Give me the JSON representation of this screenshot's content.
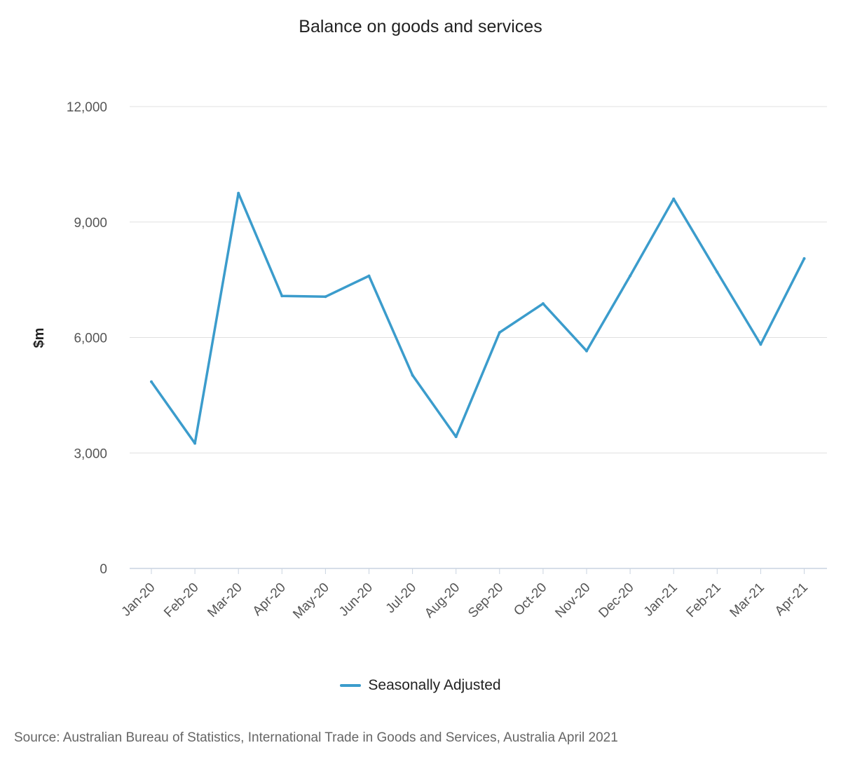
{
  "chart_data": {
    "type": "line",
    "title": "Balance on goods and services",
    "ylabel": "$m",
    "xlabel": "",
    "categories": [
      "Jan-20",
      "Feb-20",
      "Mar-20",
      "Apr-20",
      "May-20",
      "Jun-20",
      "Jul-20",
      "Aug-20",
      "Sep-20",
      "Oct-20",
      "Nov-20",
      "Dec-20",
      "Jan-21",
      "Feb-21",
      "Mar-21",
      "Apr-21"
    ],
    "series": [
      {
        "name": "Seasonally Adjusted",
        "color": "#3b9ccc",
        "values": [
          4850,
          3250,
          9750,
          7080,
          7060,
          7600,
          5020,
          3420,
          6130,
          6880,
          5650,
          7600,
          9600,
          7700,
          5820,
          8050
        ]
      }
    ],
    "ylim": [
      0,
      12000
    ],
    "yticks": [
      0,
      3000,
      6000,
      9000,
      12000
    ],
    "ytick_labels": [
      "0",
      "3,000",
      "6,000",
      "9,000",
      "12,000"
    ],
    "grid": true,
    "legend_position": "bottom-center"
  },
  "source": "Source: Australian Bureau of Statistics, International Trade in Goods and Services, Australia April 2021"
}
